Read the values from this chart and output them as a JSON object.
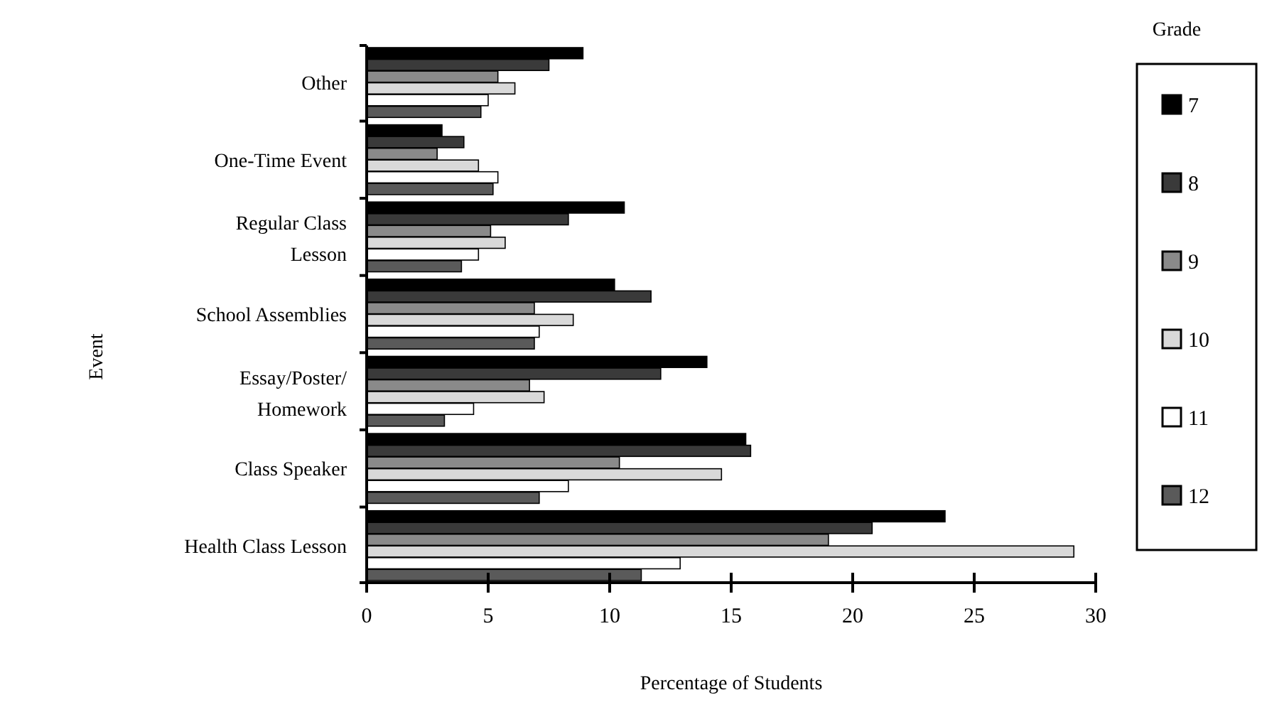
{
  "chart_data": {
    "type": "bar",
    "orientation": "horizontal",
    "xlabel": "Percentage of Students",
    "ylabel": "Event",
    "legend_title": "Grade",
    "legend": "right",
    "grid": false,
    "categories": [
      "Other",
      "One-Time Event",
      "Regular Class Lesson",
      "School Assemblies",
      "Essay/Poster/Homework",
      "Class Speaker",
      "Health Class Lesson"
    ],
    "xlim": [
      0,
      30
    ],
    "xticks": [
      0,
      5,
      10,
      15,
      20,
      25,
      30
    ],
    "series": [
      {
        "name": "7",
        "color": "#000000",
        "values": [
          8.9,
          3.1,
          10.6,
          10.2,
          14.0,
          15.6,
          23.8
        ]
      },
      {
        "name": "8",
        "color": "#3a3a3a",
        "values": [
          7.5,
          4.0,
          8.3,
          11.7,
          12.1,
          15.8,
          20.8
        ]
      },
      {
        "name": "9",
        "color": "#8a8a8a",
        "values": [
          5.4,
          2.9,
          5.1,
          6.9,
          6.7,
          10.4,
          19.0
        ]
      },
      {
        "name": "10",
        "color": "#d9d9d9",
        "values": [
          6.1,
          4.6,
          5.7,
          8.5,
          7.3,
          14.6,
          29.1
        ]
      },
      {
        "name": "11",
        "color": "#ffffff",
        "values": [
          5.0,
          5.4,
          4.6,
          7.1,
          4.4,
          8.3,
          12.9
        ]
      },
      {
        "name": "12",
        "color": "#5a5a5a",
        "values": [
          4.7,
          5.2,
          3.9,
          6.9,
          3.2,
          7.1,
          11.3
        ]
      }
    ]
  }
}
